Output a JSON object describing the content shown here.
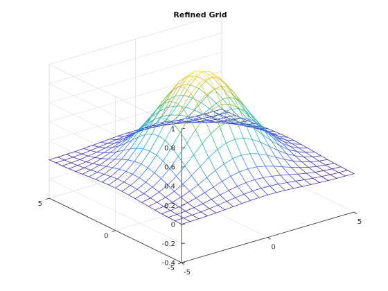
{
  "chart_data": {
    "type": "mesh",
    "title": "Refined Grid",
    "function": "Z = exp(-(X.^2 + Y.^2)/8) = 0.5^((X.^2 + Y.^2)/(8*ln 2))",
    "x": [
      -5,
      -4.5,
      -4,
      -3.5,
      -3,
      -2.5,
      -2,
      -1.5,
      -1,
      -0.5,
      0,
      0.5,
      1,
      1.5,
      2,
      2.5,
      3,
      3.5,
      4,
      4.5,
      5
    ],
    "y": [
      -5,
      -4.5,
      -4,
      -3.5,
      -3,
      -2.5,
      -2,
      -1.5,
      -1,
      -0.5,
      0,
      0.5,
      1,
      1.5,
      2,
      2.5,
      3,
      3.5,
      4,
      4.5,
      5
    ],
    "z_peak": 1,
    "xlim": [
      -5,
      5
    ],
    "ylim": [
      -5,
      5
    ],
    "zlim": [
      -0.4,
      1
    ],
    "xticks": [
      "-5",
      "0",
      "5"
    ],
    "yticks": [
      "-5",
      "0",
      "5"
    ],
    "zticks": [
      "-0.4",
      "-0.2",
      "0",
      "0.2",
      "0.4",
      "0.6",
      "0.8",
      "1"
    ],
    "grid": true,
    "colormap": [
      "#3e26a8",
      "#4461fa",
      "#2d9ae6",
      "#1fb8b5",
      "#47c37a",
      "#a5be35",
      "#f0ba3f",
      "#f9fb15"
    ]
  }
}
